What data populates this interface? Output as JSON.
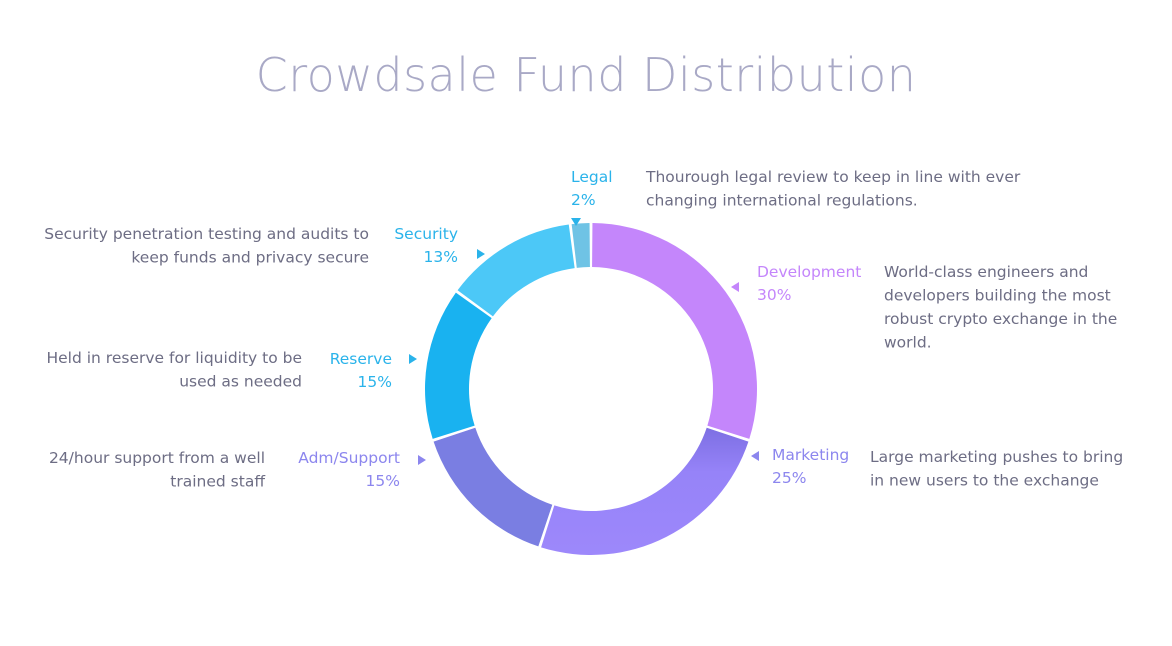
{
  "title": "Crowdsale Fund Distribution",
  "chart_data": {
    "type": "pie",
    "variant": "donut",
    "title": "Crowdsale Fund Distribution",
    "slices": [
      {
        "name": "Development",
        "value": 30,
        "label": "30%",
        "color": "#c486fb",
        "description": [
          "World-class engineers and",
          "developers building the most",
          "robust crypto exchange in the",
          "world."
        ]
      },
      {
        "name": "Marketing",
        "value": 25,
        "label": "25%",
        "color": "#9a84fa",
        "description": [
          "Large marketing pushes to bring",
          "in new users to the exchange"
        ]
      },
      {
        "name": "Adm/Support",
        "value": 15,
        "label": "15%",
        "color": "#7a7ee2",
        "description": [
          "24/hour support from a well",
          "trained staff"
        ]
      },
      {
        "name": "Reserve",
        "value": 15,
        "label": "15%",
        "color": "#19b2f0",
        "description": [
          "Held in reserve for liquidity to be",
          "used as needed"
        ]
      },
      {
        "name": "Security",
        "value": 13,
        "label": "13%",
        "color": "#4cc8f7",
        "description": [
          "Security penetration testing and audits to",
          "keep funds and privacy secure"
        ]
      },
      {
        "name": "Legal",
        "value": 2,
        "label": "2%",
        "color": "#6fc3e5",
        "description": [
          "Thourough legal review to keep in line with ever",
          "changing international regulations."
        ]
      }
    ],
    "label_colors": {
      "Development": "#c486fb",
      "Marketing": "#8c86ee",
      "Adm/Support": "#8c86ee",
      "Reserve": "#2ab3ea",
      "Security": "#2ab3ea",
      "Legal": "#2ab3ea"
    },
    "legend": "none"
  }
}
